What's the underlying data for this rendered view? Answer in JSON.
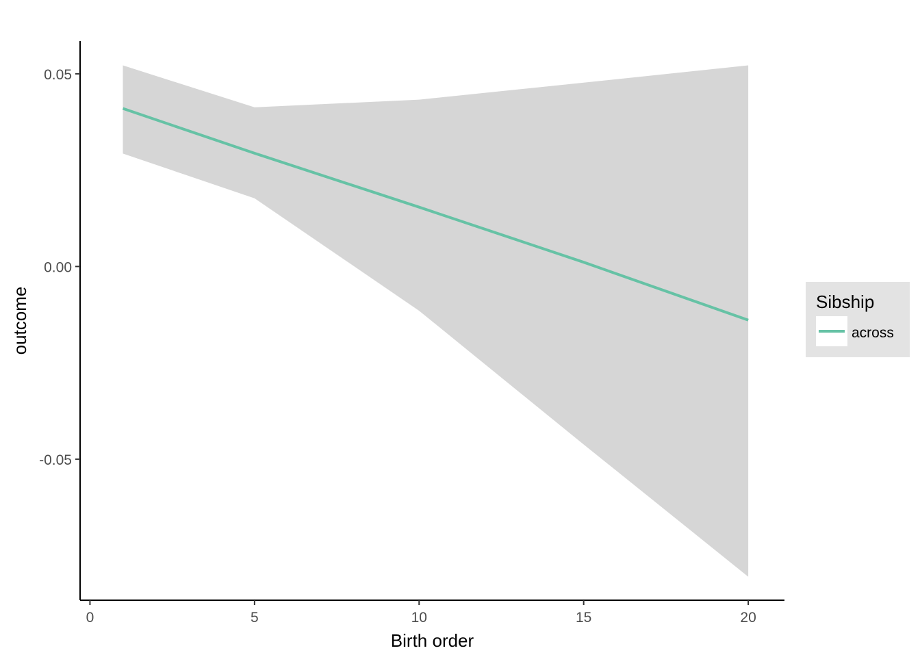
{
  "chart_data": {
    "type": "line",
    "xlabel": "Birth order",
    "ylabel": "outcome",
    "xlim": [
      -0.3,
      21.1
    ],
    "ylim": [
      -0.0866,
      0.0585
    ],
    "x_ticks": [
      0,
      5,
      10,
      15,
      20
    ],
    "x_tick_labels": [
      "0",
      "5",
      "10",
      "15",
      "20"
    ],
    "y_ticks": [
      -0.05,
      0.0,
      0.05
    ],
    "y_tick_labels": [
      "-0.05",
      "0.00",
      "0.05"
    ],
    "grid": false,
    "legend": {
      "title": "Sibship",
      "placement": "right",
      "entries": [
        {
          "label": "across",
          "color": "#66c2a5"
        }
      ]
    },
    "series": [
      {
        "name": "across",
        "color": "#66c2a5",
        "x": [
          1,
          5,
          10,
          15,
          20
        ],
        "y": [
          0.041,
          0.0294,
          0.0154,
          0.0011,
          -0.0139
        ],
        "ci_lower": [
          0.0293,
          0.0177,
          -0.0115,
          -0.0462,
          -0.0805
        ],
        "ci_upper": [
          0.0522,
          0.0413,
          0.0433,
          0.0477,
          0.0522
        ],
        "ci_color": "#d6d6d6"
      }
    ]
  }
}
